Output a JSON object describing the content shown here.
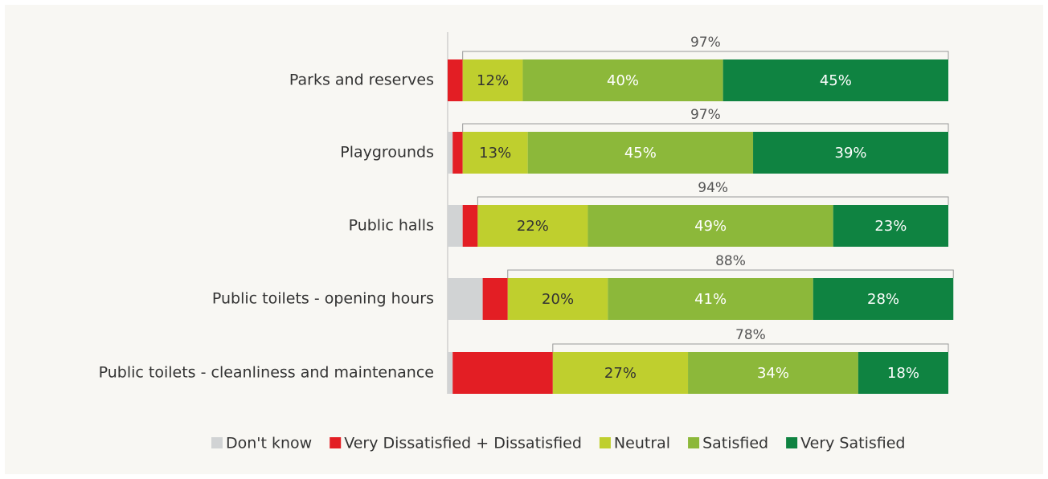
{
  "chart_data": {
    "type": "stacked_bar_horizontal",
    "categories": [
      "Parks and reserves",
      "Playgrounds",
      "Public halls",
      "Public toilets - opening hours",
      "Public toilets - cleanliness and maintenance"
    ],
    "series": [
      {
        "name": "Don't know",
        "color": "#d1d3d4",
        "values": [
          0,
          1,
          3,
          7,
          1
        ]
      },
      {
        "name": "Very Dissatisfied + Dissatisfied",
        "color": "#e31e24",
        "values": [
          3,
          2,
          3,
          5,
          20
        ]
      },
      {
        "name": "Neutral",
        "color": "#bfcf2e",
        "values": [
          12,
          13,
          22,
          20,
          27
        ],
        "value_labels": [
          "12%",
          "13%",
          "22%",
          "20%",
          "27%"
        ]
      },
      {
        "name": "Satisfied",
        "color": "#8cb83a",
        "values": [
          40,
          45,
          49,
          41,
          34
        ],
        "value_labels": [
          "40%",
          "45%",
          "49%",
          "41%",
          "34%"
        ]
      },
      {
        "name": "Very Satisfied",
        "color": "#0f8341",
        "values": [
          45,
          39,
          23,
          28,
          18
        ],
        "value_labels": [
          "45%",
          "39%",
          "23%",
          "28%",
          "18%"
        ]
      }
    ],
    "totals": {
      "values": [
        97,
        97,
        94,
        88,
        78
      ],
      "value_labels": [
        "97%",
        "97%",
        "94%",
        "88%",
        "78%"
      ]
    },
    "xlim": [
      0,
      100
    ],
    "legend": "bottom"
  }
}
